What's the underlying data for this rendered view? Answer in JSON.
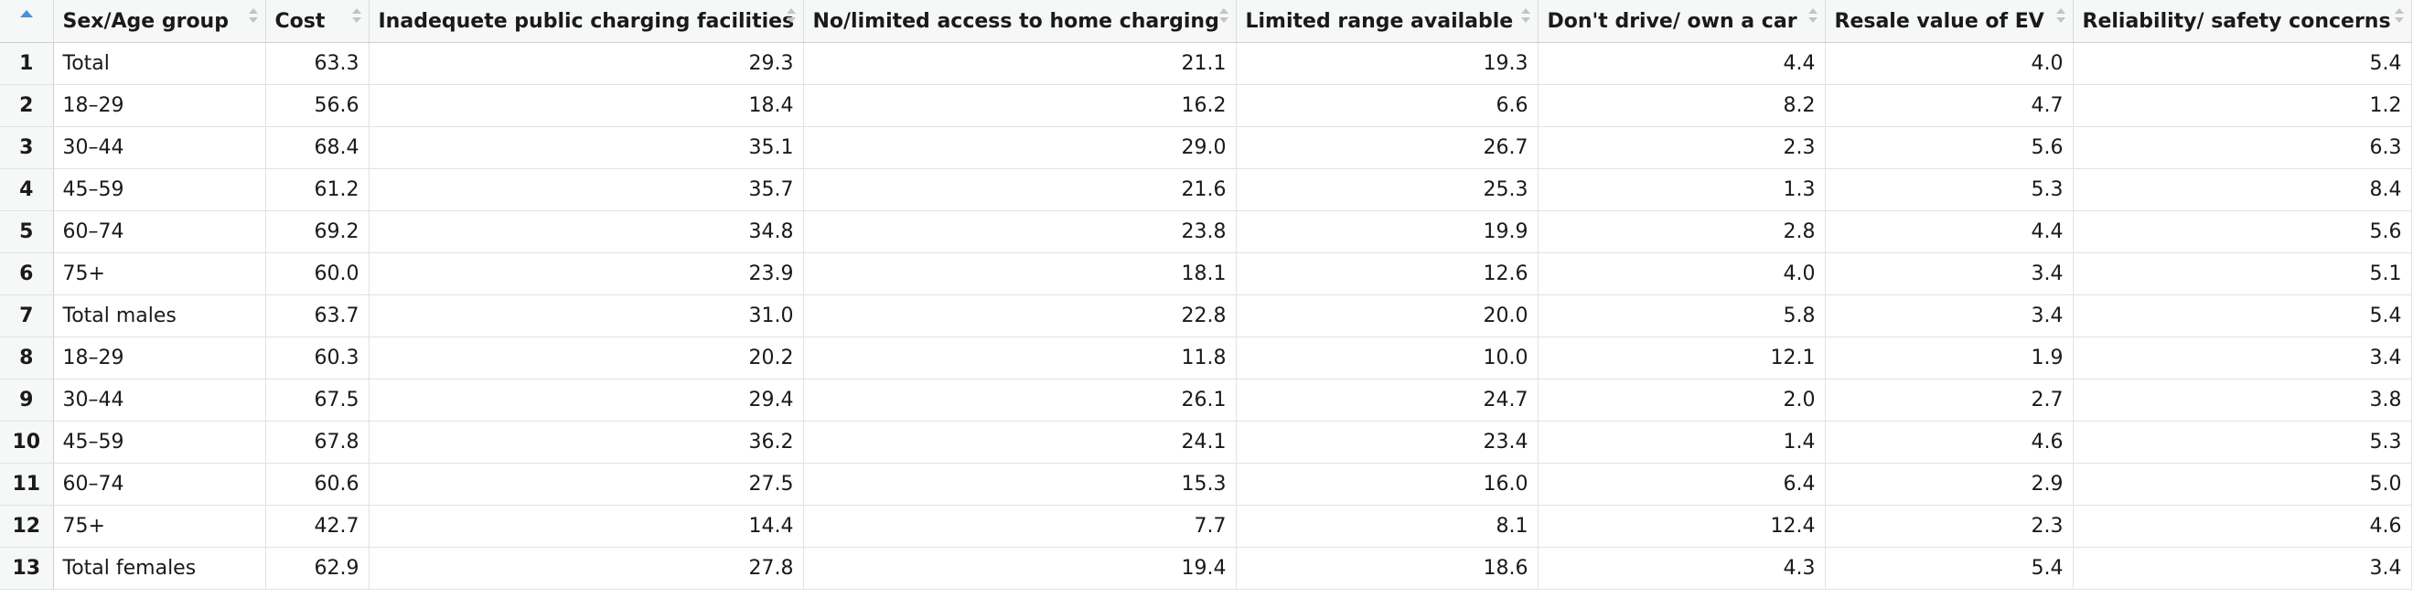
{
  "columns": [
    {
      "label": "",
      "align": "center"
    },
    {
      "label": "Sex/Age group",
      "align": "left"
    },
    {
      "label": "Cost",
      "align": "left"
    },
    {
      "label": "Inadequete public charging facilities",
      "align": "left"
    },
    {
      "label": "No/limited access to home charging",
      "align": "left"
    },
    {
      "label": "Limited range available",
      "align": "left"
    },
    {
      "label": "Don't drive/ own a car",
      "align": "left"
    },
    {
      "label": "Resale value of EV",
      "align": "left"
    },
    {
      "label": "Reliability/ safety concerns",
      "align": "left"
    }
  ],
  "rows": [
    [
      "1",
      "Total",
      "63.3",
      "29.3",
      "21.1",
      "19.3",
      "4.4",
      "4.0",
      "5.4"
    ],
    [
      "2",
      "18–29",
      "56.6",
      "18.4",
      "16.2",
      "6.6",
      "8.2",
      "4.7",
      "1.2"
    ],
    [
      "3",
      "30–44",
      "68.4",
      "35.1",
      "29.0",
      "26.7",
      "2.3",
      "5.6",
      "6.3"
    ],
    [
      "4",
      "45–59",
      "61.2",
      "35.7",
      "21.6",
      "25.3",
      "1.3",
      "5.3",
      "8.4"
    ],
    [
      "5",
      "60–74",
      "69.2",
      "34.8",
      "23.8",
      "19.9",
      "2.8",
      "4.4",
      "5.6"
    ],
    [
      "6",
      "75+",
      "60.0",
      "23.9",
      "18.1",
      "12.6",
      "4.0",
      "3.4",
      "5.1"
    ],
    [
      "7",
      "Total males",
      "63.7",
      "31.0",
      "22.8",
      "20.0",
      "5.8",
      "3.4",
      "5.4"
    ],
    [
      "8",
      "18–29",
      "60.3",
      "20.2",
      "11.8",
      "10.0",
      "12.1",
      "1.9",
      "3.4"
    ],
    [
      "9",
      "30–44",
      "67.5",
      "29.4",
      "26.1",
      "24.7",
      "2.0",
      "2.7",
      "3.8"
    ],
    [
      "10",
      "45–59",
      "67.8",
      "36.2",
      "24.1",
      "23.4",
      "1.4",
      "4.6",
      "5.3"
    ],
    [
      "11",
      "60–74",
      "60.6",
      "27.5",
      "15.3",
      "16.0",
      "6.4",
      "2.9",
      "5.0"
    ],
    [
      "12",
      "75+",
      "42.7",
      "14.4",
      "7.7",
      "8.1",
      "12.4",
      "2.3",
      "4.6"
    ],
    [
      "13",
      "Total females",
      "62.9",
      "27.8",
      "19.4",
      "18.6",
      "4.3",
      "5.4",
      "3.4"
    ]
  ],
  "colors": {
    "header_bg": "#f6f7f7",
    "sort_active": "#4a90d9",
    "sort_inactive": "#c4c4c4",
    "grid_line": "#e2e2e2"
  },
  "icons": {
    "index_sort": "sort-ascending-icon",
    "column_sort": "sort-toggle-icon"
  }
}
